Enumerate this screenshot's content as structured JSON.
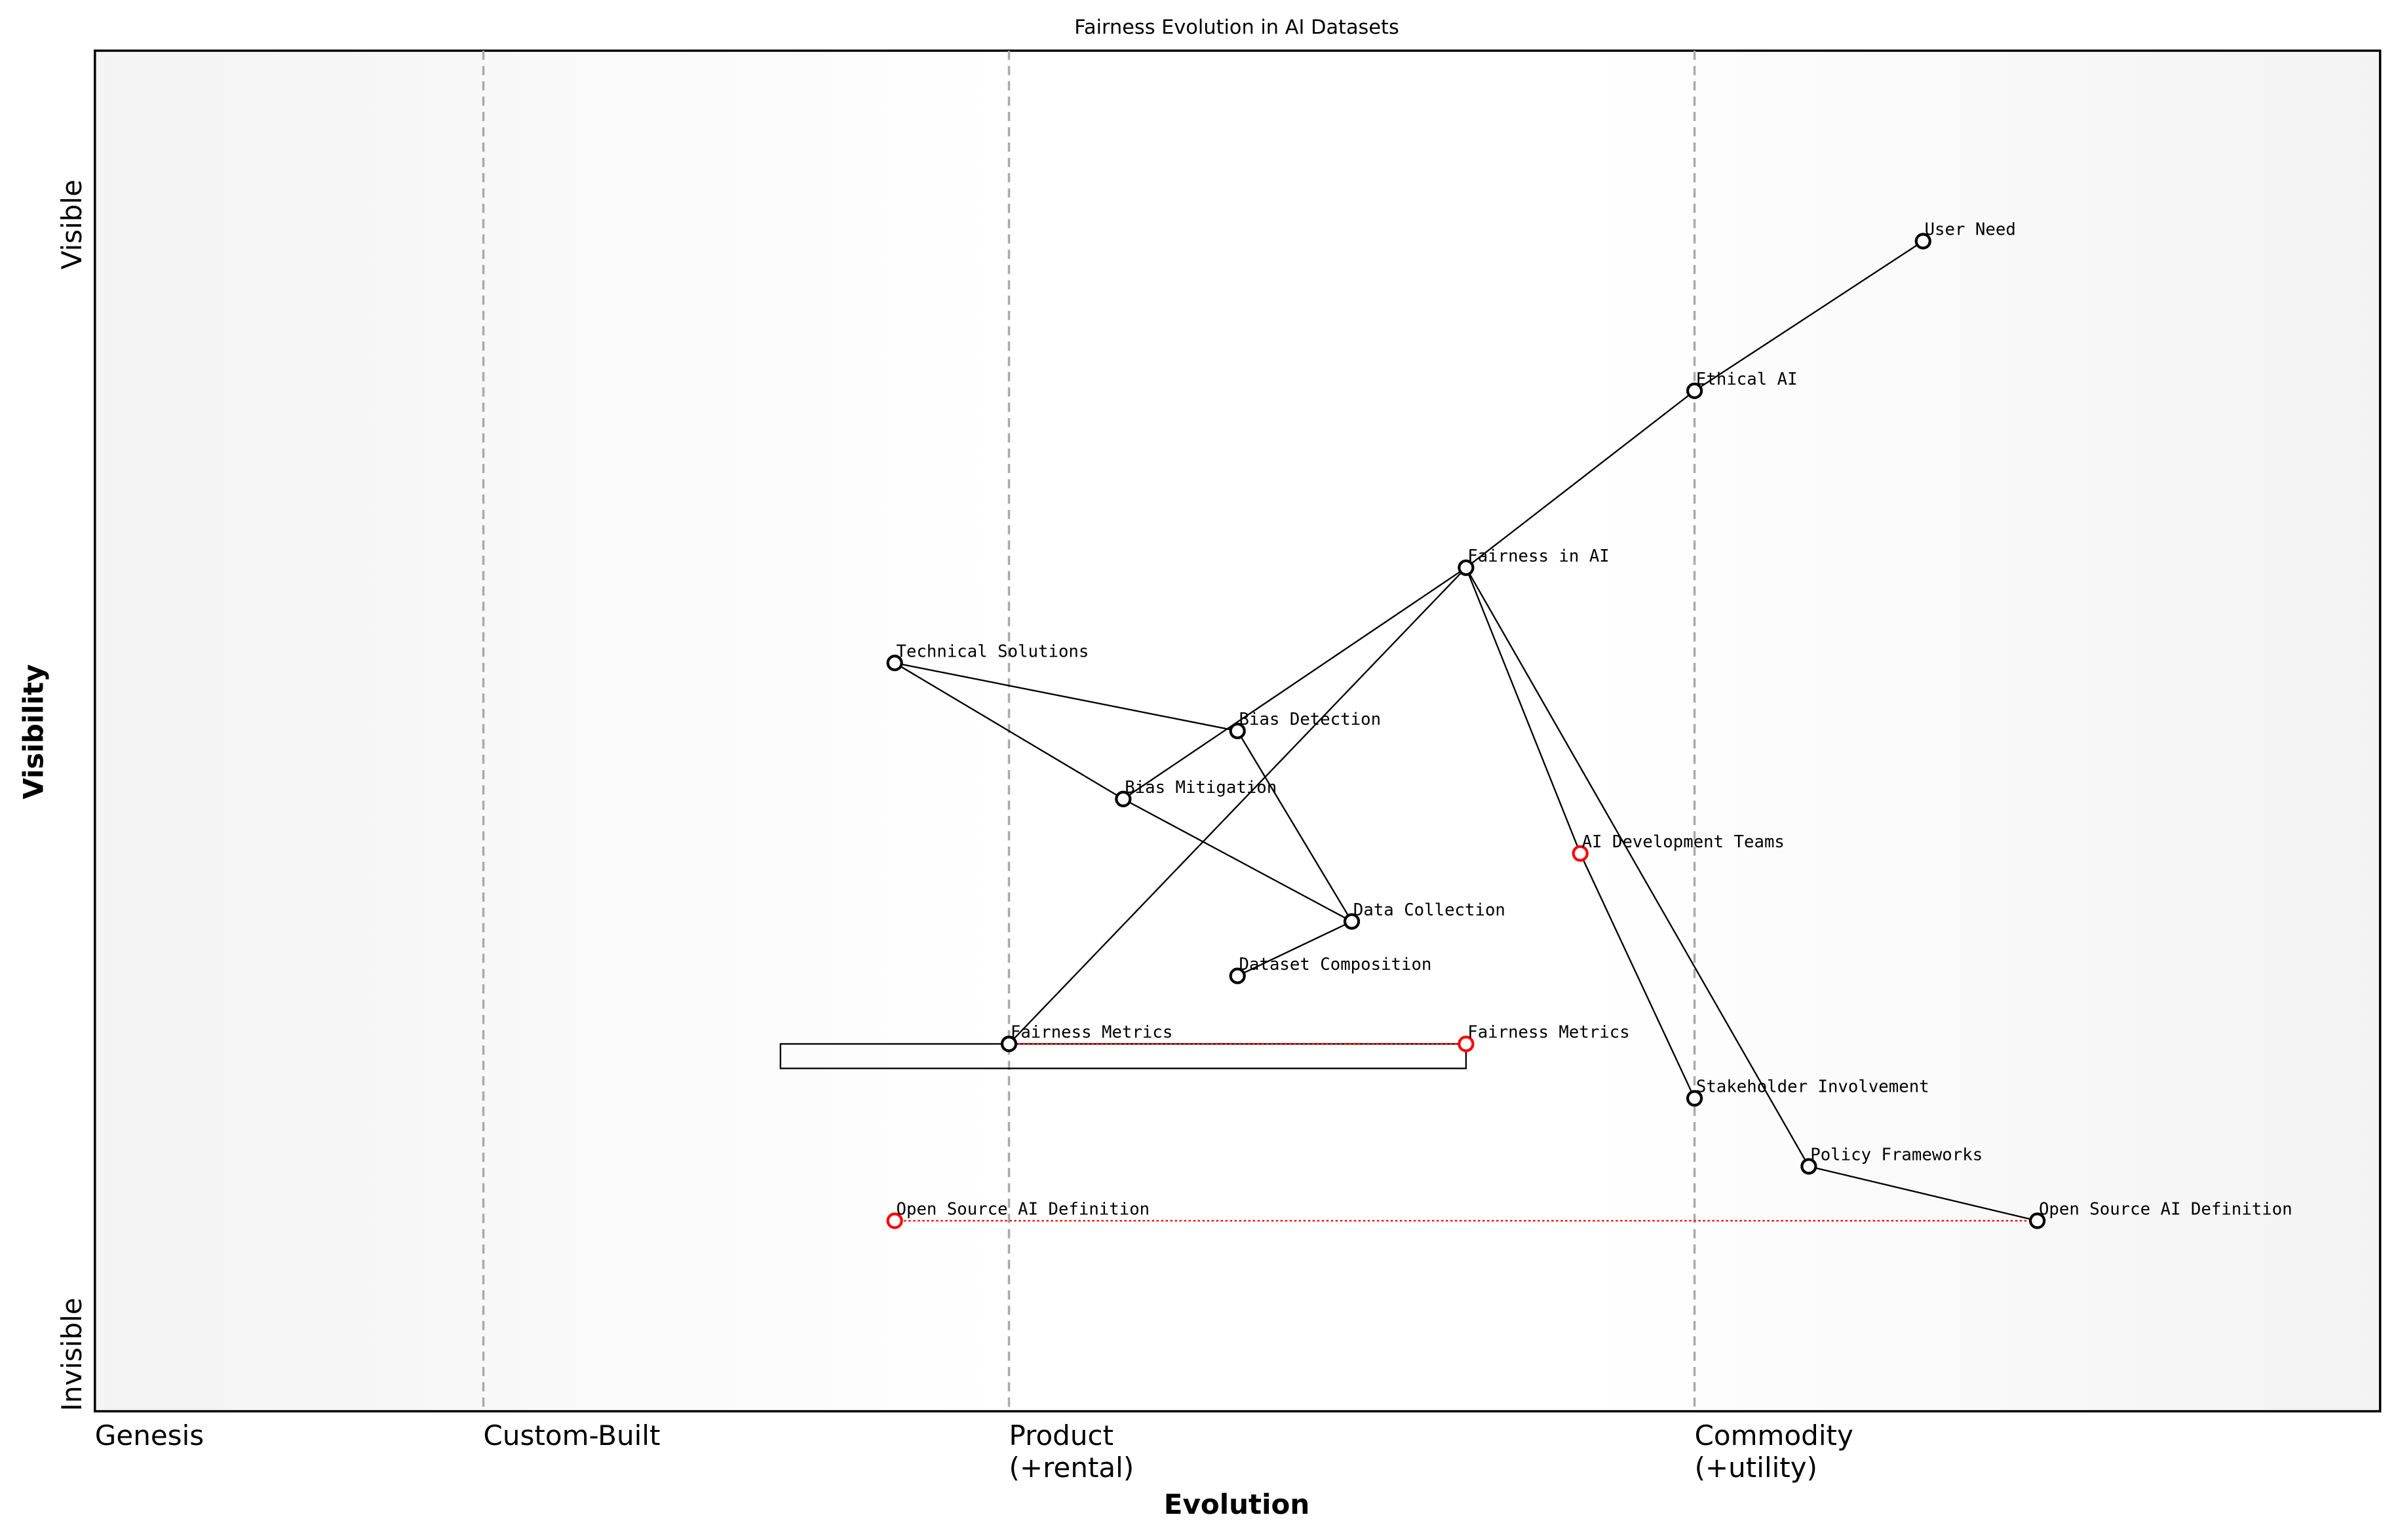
{
  "title": "Fairness Evolution in AI Datasets",
  "x_label": "Evolution",
  "y_label": "Visibility",
  "y_ends": [
    "Invisible",
    "Visible"
  ],
  "stages": [
    {
      "label": [
        "Genesis"
      ],
      "evolution": 0
    },
    {
      "label": [
        "Custom-Built"
      ],
      "evolution": 0.17
    },
    {
      "label": [
        "Product",
        "(+rental)"
      ],
      "evolution": 0.4
    },
    {
      "label": [
        "Commodity",
        "(+utility)"
      ],
      "evolution": 0.7
    }
  ],
  "nodes": [
    {
      "label": "User Need",
      "evolution": 0.8,
      "visibility": 0.86,
      "color": "black"
    },
    {
      "label": "Ethical AI",
      "evolution": 0.7,
      "visibility": 0.75,
      "color": "black"
    },
    {
      "label": "Fairness in AI",
      "evolution": 0.6,
      "visibility": 0.62,
      "color": "black"
    },
    {
      "label": "Technical Solutions",
      "evolution": 0.35,
      "visibility": 0.55,
      "color": "black"
    },
    {
      "label": "Bias Detection",
      "evolution": 0.5,
      "visibility": 0.5,
      "color": "black"
    },
    {
      "label": "Bias Mitigation",
      "evolution": 0.45,
      "visibility": 0.45,
      "color": "black"
    },
    {
      "label": "AI Development Teams",
      "evolution": 0.65,
      "visibility": 0.41,
      "color": "red"
    },
    {
      "label": "Data Collection",
      "evolution": 0.55,
      "visibility": 0.36,
      "color": "black"
    },
    {
      "label": "Dataset Composition",
      "evolution": 0.5,
      "visibility": 0.32,
      "color": "black"
    },
    {
      "label": "Fairness Metrics",
      "evolution": 0.4,
      "visibility": 0.27,
      "color": "black"
    },
    {
      "label": "Fairness Metrics",
      "evolution": 0.6,
      "visibility": 0.27,
      "color": "red"
    },
    {
      "label": "Stakeholder Involvement",
      "evolution": 0.7,
      "visibility": 0.23,
      "color": "black"
    },
    {
      "label": "Policy Frameworks",
      "evolution": 0.75,
      "visibility": 0.18,
      "color": "black"
    },
    {
      "label": "Open Source AI Definition",
      "evolution": 0.85,
      "visibility": 0.14,
      "color": "black"
    },
    {
      "label": "Open Source AI Definition",
      "evolution": 0.35,
      "visibility": 0.14,
      "color": "red"
    }
  ],
  "links": [
    [
      0,
      1
    ],
    [
      1,
      2
    ],
    [
      2,
      5
    ],
    [
      2,
      9
    ],
    [
      2,
      6
    ],
    [
      6,
      11
    ],
    [
      2,
      12
    ],
    [
      12,
      13
    ],
    [
      3,
      4
    ],
    [
      3,
      5
    ],
    [
      5,
      7
    ],
    [
      4,
      7
    ],
    [
      7,
      8
    ]
  ],
  "evolve": [
    [
      9,
      10
    ],
    [
      14,
      13
    ]
  ],
  "pipeline": {
    "node": 9,
    "start": 0.3,
    "end": 0.6
  }
}
